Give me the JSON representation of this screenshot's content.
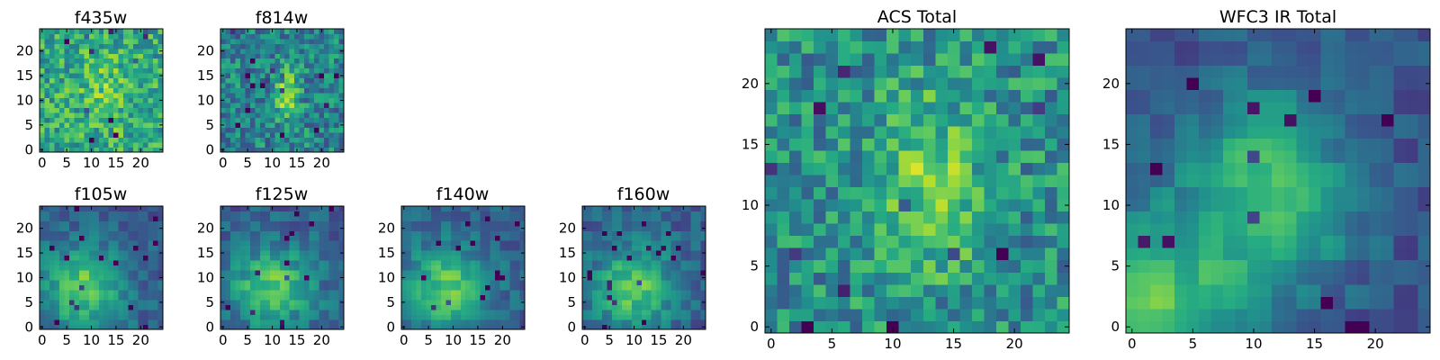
{
  "chart_data": [
    {
      "type": "heatmap",
      "title": "f435w",
      "colormap": "viridis",
      "x_ticks": [
        0,
        5,
        10,
        15,
        20
      ],
      "y_ticks": [
        0,
        5,
        10,
        15,
        20
      ],
      "grid_size": 25,
      "xlim": [
        -0.5,
        24.5
      ],
      "ylim": [
        -0.5,
        24.5
      ],
      "blob": {
        "cx": 13,
        "cy": 12,
        "sx": 3.5,
        "sy": 5,
        "amp": 0.15
      },
      "base": 0.6,
      "noise": 0.22,
      "pixel": 1,
      "seed": 11
    },
    {
      "type": "heatmap",
      "title": "f814w",
      "colormap": "viridis",
      "x_ticks": [
        0,
        5,
        10,
        15,
        20
      ],
      "y_ticks": [
        0,
        5,
        10,
        15,
        20
      ],
      "grid_size": 25,
      "xlim": [
        -0.5,
        24.5
      ],
      "ylim": [
        -0.5,
        24.5
      ],
      "blob": {
        "cx": 13,
        "cy": 11,
        "sx": 1.8,
        "sy": 4,
        "amp": 0.35
      },
      "base": 0.45,
      "noise": 0.22,
      "pixel": 1,
      "seed": 23
    },
    {
      "type": "heatmap",
      "title": "f105w",
      "colormap": "viridis",
      "x_ticks": [
        0,
        5,
        10,
        15,
        20
      ],
      "y_ticks": [
        0,
        5,
        10,
        15,
        20
      ],
      "grid_size": 25,
      "xlim": [
        -0.5,
        24.5
      ],
      "ylim": [
        -0.5,
        24.5
      ],
      "blob": {
        "cx": 8,
        "cy": 8,
        "sx": 6,
        "sy": 6,
        "amp": 0.45
      },
      "base": 0.3,
      "noise": 0.12,
      "pixel": 2,
      "seed": 37
    },
    {
      "type": "heatmap",
      "title": "f125w",
      "colormap": "viridis",
      "x_ticks": [
        0,
        5,
        10,
        15,
        20
      ],
      "y_ticks": [
        0,
        5,
        10,
        15,
        20
      ],
      "grid_size": 25,
      "xlim": [
        -0.5,
        24.5
      ],
      "ylim": [
        -0.5,
        24.5
      ],
      "blob": {
        "cx": 10,
        "cy": 8,
        "sx": 6,
        "sy": 6,
        "amp": 0.45
      },
      "base": 0.3,
      "noise": 0.13,
      "pixel": 2,
      "seed": 41
    },
    {
      "type": "heatmap",
      "title": "f140w",
      "colormap": "viridis",
      "x_ticks": [
        0,
        5,
        10,
        15,
        20
      ],
      "y_ticks": [
        0,
        5,
        10,
        15,
        20
      ],
      "grid_size": 25,
      "xlim": [
        -0.5,
        24.5
      ],
      "ylim": [
        -0.5,
        24.5
      ],
      "blob": {
        "cx": 9,
        "cy": 8,
        "sx": 6,
        "sy": 6,
        "amp": 0.45
      },
      "base": 0.3,
      "noise": 0.12,
      "pixel": 2,
      "seed": 53
    },
    {
      "type": "heatmap",
      "title": "f160w",
      "colormap": "viridis",
      "x_ticks": [
        0,
        5,
        10,
        15,
        20
      ],
      "y_ticks": [
        0,
        5,
        10,
        15,
        20
      ],
      "grid_size": 25,
      "xlim": [
        -0.5,
        24.5
      ],
      "ylim": [
        -0.5,
        24.5
      ],
      "blob": {
        "cx": 10,
        "cy": 8,
        "sx": 6,
        "sy": 6,
        "amp": 0.45
      },
      "base": 0.3,
      "noise": 0.12,
      "pixel": 2,
      "seed": 67
    },
    {
      "type": "heatmap",
      "title": "ACS Total",
      "colormap": "viridis",
      "x_ticks": [
        0,
        5,
        10,
        15,
        20
      ],
      "y_ticks": [
        0,
        5,
        10,
        15,
        20
      ],
      "grid_size": 25,
      "xlim": [
        -0.5,
        24.5
      ],
      "ylim": [
        -0.5,
        24.5
      ],
      "blob": {
        "cx": 13,
        "cy": 12,
        "sx": 3,
        "sy": 5,
        "amp": 0.3
      },
      "base": 0.5,
      "noise": 0.22,
      "pixel": 1,
      "seed": 79
    },
    {
      "type": "heatmap",
      "title": "WFC3 IR Total",
      "colormap": "viridis",
      "x_ticks": [
        0,
        5,
        10,
        15,
        20
      ],
      "y_ticks": [
        0,
        5,
        10,
        15,
        20
      ],
      "grid_size": 25,
      "xlim": [
        -0.5,
        24.5
      ],
      "ylim": [
        -0.5,
        24.5
      ],
      "blob": {
        "cx": 11,
        "cy": 11,
        "sx": 5,
        "sy": 6,
        "amp": 0.45
      },
      "blob2": {
        "cx": 1,
        "cy": 1,
        "sx": 5,
        "sy": 5,
        "amp": 0.5
      },
      "base": 0.25,
      "noise": 0.1,
      "pixel": 2,
      "seed": 97
    }
  ]
}
